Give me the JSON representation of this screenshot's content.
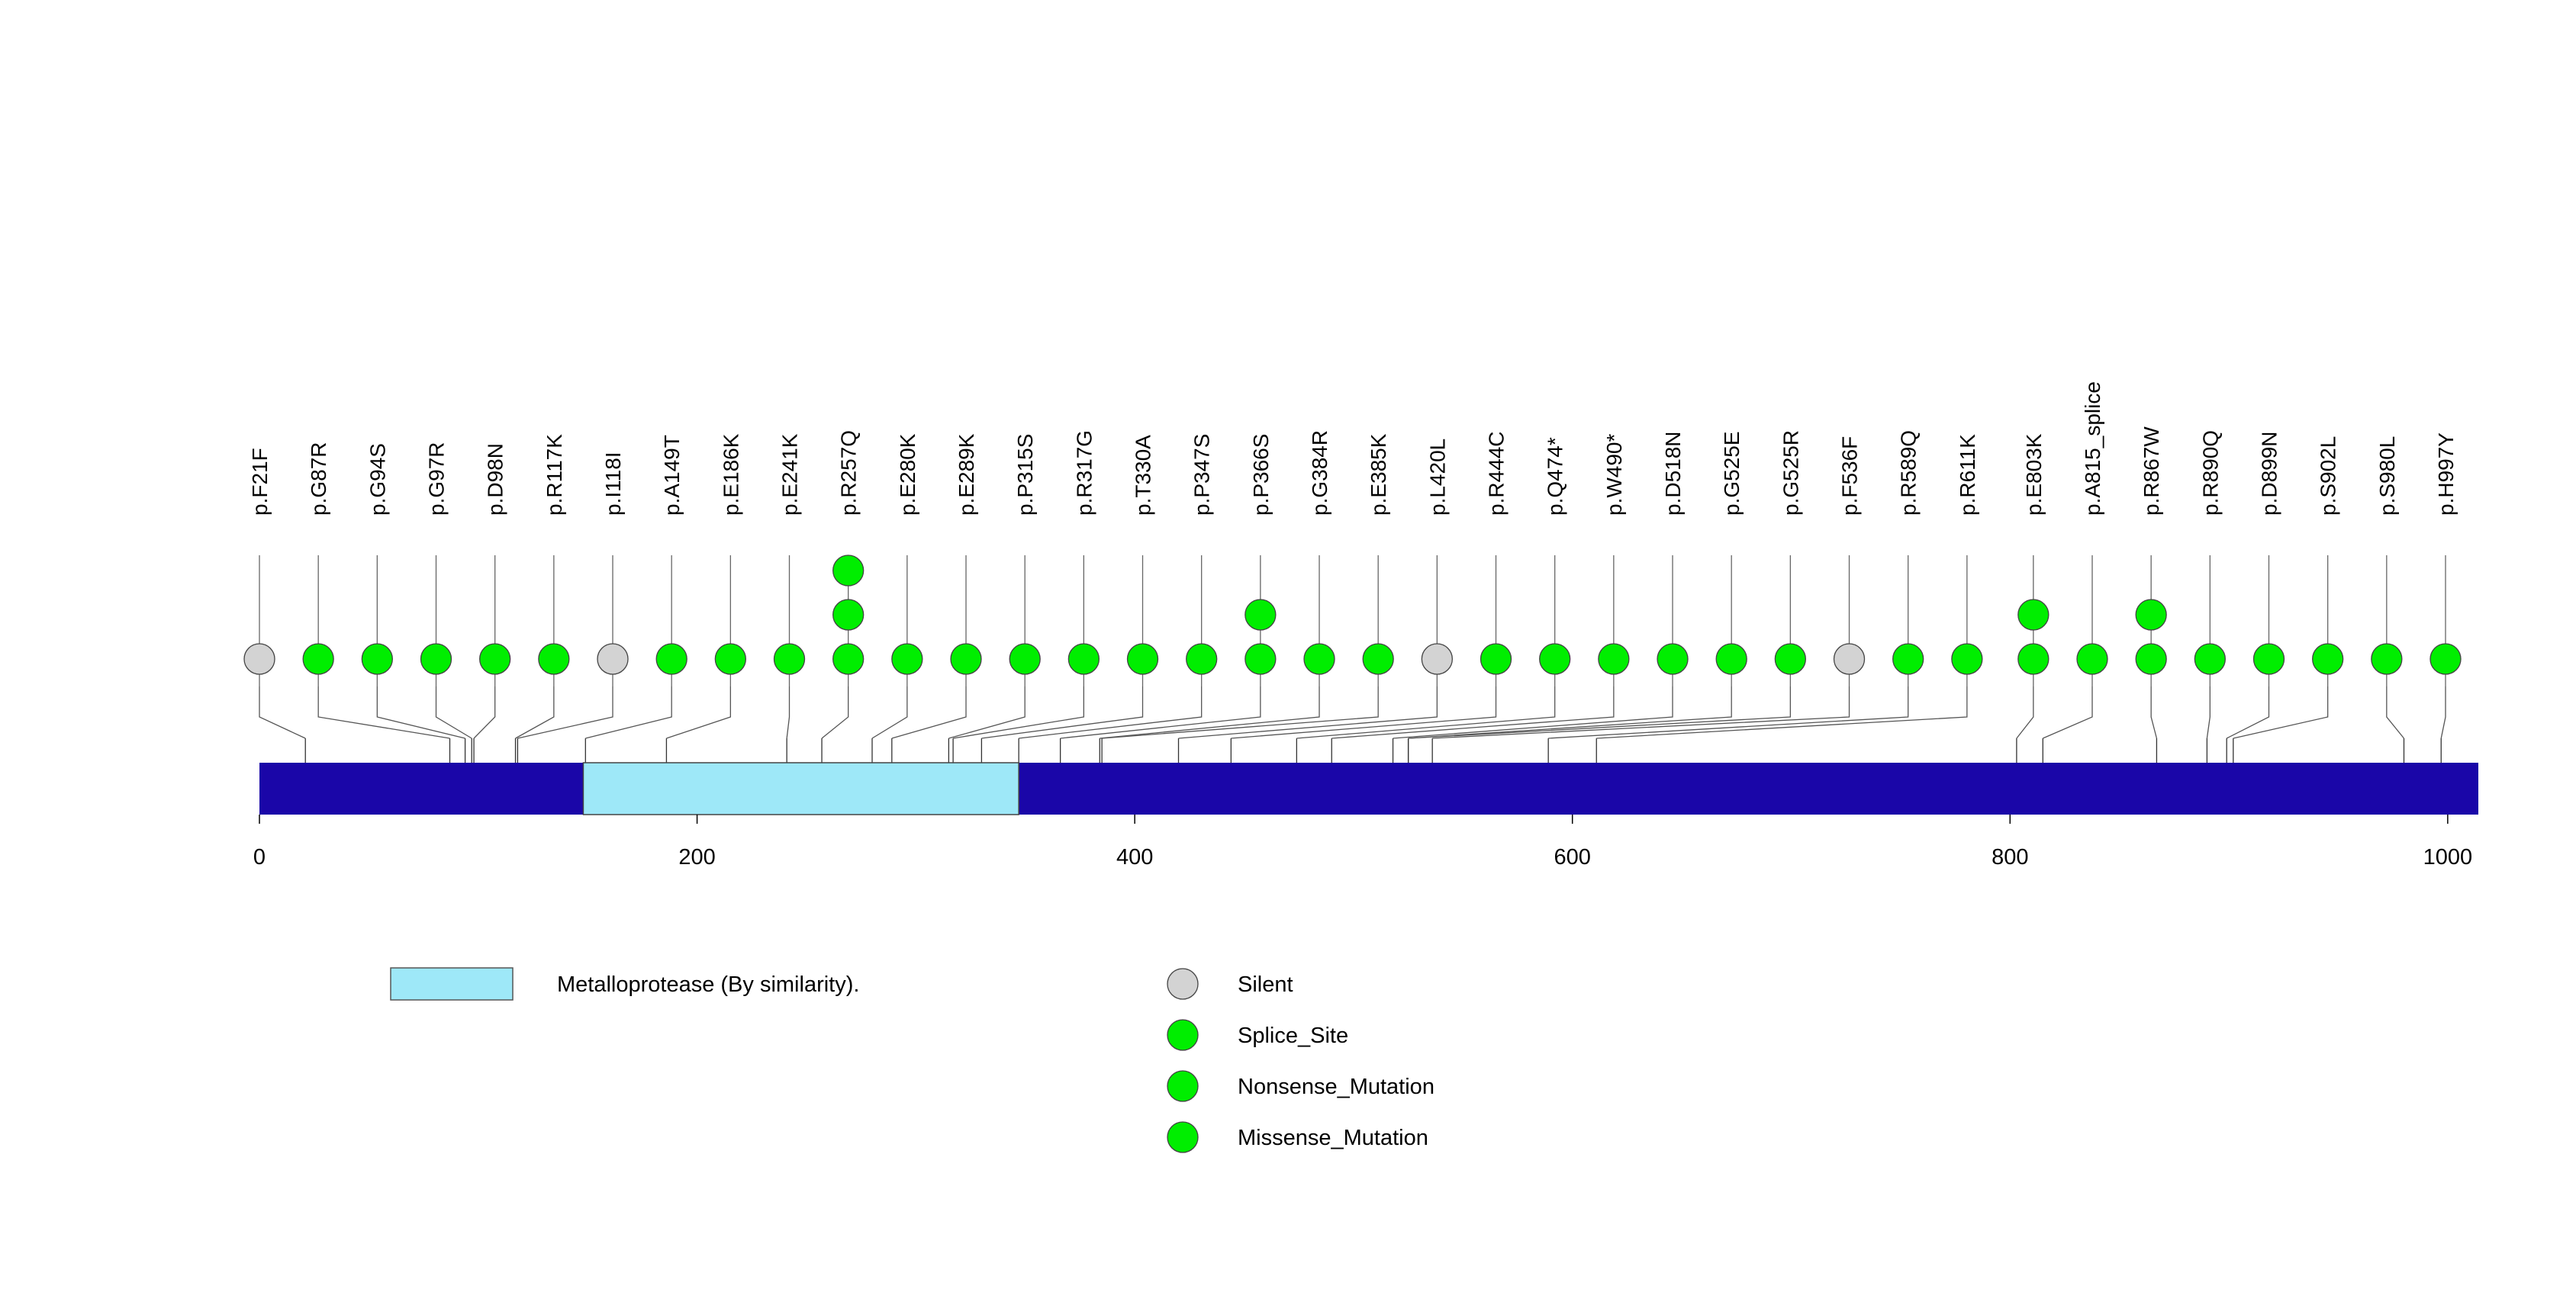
{
  "chart_data": {
    "type": "lollipop",
    "protein_length": 1014,
    "axis": {
      "ticks": [
        0,
        200,
        400,
        600,
        800,
        1000
      ],
      "range": [
        0,
        1014
      ]
    },
    "domains": [
      {
        "name": "Metalloprotease (By similarity).",
        "start": 148,
        "end": 347,
        "color": "#9ee8f8"
      }
    ],
    "backbone_color": "#1a06a8",
    "mutations": [
      {
        "label": "p.F21F",
        "position": 21,
        "type": "Silent",
        "count": 1
      },
      {
        "label": "p.G87R",
        "position": 87,
        "type": "Missense_Mutation",
        "count": 1
      },
      {
        "label": "p.G94S",
        "position": 94,
        "type": "Missense_Mutation",
        "count": 1
      },
      {
        "label": "p.G97R",
        "position": 97,
        "type": "Missense_Mutation",
        "count": 1
      },
      {
        "label": "p.D98N",
        "position": 98,
        "type": "Missense_Mutation",
        "count": 1
      },
      {
        "label": "p.R117K",
        "position": 117,
        "type": "Missense_Mutation",
        "count": 1
      },
      {
        "label": "p.I118I",
        "position": 118,
        "type": "Silent",
        "count": 1
      },
      {
        "label": "p.A149T",
        "position": 149,
        "type": "Missense_Mutation",
        "count": 1
      },
      {
        "label": "p.E186K",
        "position": 186,
        "type": "Missense_Mutation",
        "count": 1
      },
      {
        "label": "p.E241K",
        "position": 241,
        "type": "Missense_Mutation",
        "count": 1
      },
      {
        "label": "p.R257Q",
        "position": 257,
        "type": "Missense_Mutation",
        "count": 3
      },
      {
        "label": "p.E280K",
        "position": 280,
        "type": "Missense_Mutation",
        "count": 1
      },
      {
        "label": "p.E289K",
        "position": 289,
        "type": "Missense_Mutation",
        "count": 1
      },
      {
        "label": "p.P315S",
        "position": 315,
        "type": "Missense_Mutation",
        "count": 1
      },
      {
        "label": "p.R317G",
        "position": 317,
        "type": "Missense_Mutation",
        "count": 1
      },
      {
        "label": "p.T330A",
        "position": 330,
        "type": "Missense_Mutation",
        "count": 1
      },
      {
        "label": "p.P347S",
        "position": 347,
        "type": "Missense_Mutation",
        "count": 1
      },
      {
        "label": "p.P366S",
        "position": 366,
        "type": "Missense_Mutation",
        "count": 2
      },
      {
        "label": "p.G384R",
        "position": 384,
        "type": "Missense_Mutation",
        "count": 1
      },
      {
        "label": "p.E385K",
        "position": 385,
        "type": "Missense_Mutation",
        "count": 1
      },
      {
        "label": "p.L420L",
        "position": 420,
        "type": "Silent",
        "count": 1
      },
      {
        "label": "p.R444C",
        "position": 444,
        "type": "Missense_Mutation",
        "count": 1
      },
      {
        "label": "p.Q474*",
        "position": 474,
        "type": "Nonsense_Mutation",
        "count": 1
      },
      {
        "label": "p.W490*",
        "position": 490,
        "type": "Nonsense_Mutation",
        "count": 1
      },
      {
        "label": "p.D518N",
        "position": 518,
        "type": "Missense_Mutation",
        "count": 1
      },
      {
        "label": "p.G525E",
        "position": 525,
        "type": "Missense_Mutation",
        "count": 1
      },
      {
        "label": "p.G525R",
        "position": 525,
        "type": "Missense_Mutation",
        "count": 1
      },
      {
        "label": "p.F536F",
        "position": 536,
        "type": "Silent",
        "count": 1
      },
      {
        "label": "p.R589Q",
        "position": 589,
        "type": "Missense_Mutation",
        "count": 1
      },
      {
        "label": "p.R611K",
        "position": 611,
        "type": "Missense_Mutation",
        "count": 1
      },
      {
        "label": "p.E803K",
        "position": 803,
        "type": "Missense_Mutation",
        "count": 2
      },
      {
        "label": "p.A815_splice",
        "position": 815,
        "type": "Splice_Site",
        "count": 1
      },
      {
        "label": "p.R867W",
        "position": 867,
        "type": "Missense_Mutation",
        "count": 2
      },
      {
        "label": "p.R890Q",
        "position": 890,
        "type": "Missense_Mutation",
        "count": 1
      },
      {
        "label": "p.D899N",
        "position": 899,
        "type": "Missense_Mutation",
        "count": 1
      },
      {
        "label": "p.S902L",
        "position": 902,
        "type": "Missense_Mutation",
        "count": 1
      },
      {
        "label": "p.S980L",
        "position": 980,
        "type": "Missense_Mutation",
        "count": 1
      },
      {
        "label": "p.H997Y",
        "position": 997,
        "type": "Missense_Mutation",
        "count": 1
      }
    ],
    "legend": {
      "domain_label": "Metalloprotease (By similarity).",
      "types": [
        {
          "name": "Silent",
          "color": "#d3d3d3"
        },
        {
          "name": "Splice_Site",
          "color": "#00ee00"
        },
        {
          "name": "Nonsense_Mutation",
          "color": "#00ee00"
        },
        {
          "name": "Missense_Mutation",
          "color": "#00ee00"
        }
      ]
    }
  }
}
